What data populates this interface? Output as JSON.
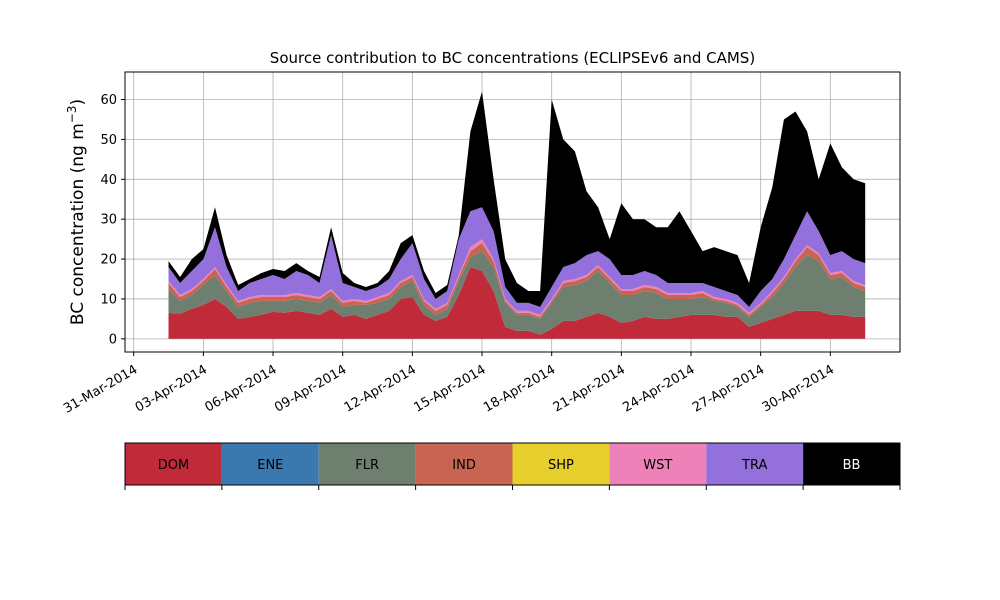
{
  "chart_data": {
    "type": "area",
    "stacked": true,
    "title": "Source contribution to BC concentrations (ECLIPSEv6 and CAMS)",
    "ylabel_main": "BC concentration (ng m",
    "ylabel_sup": "−3",
    "ylabel_close": ")",
    "xlabel": "",
    "ylim": [
      -3.3,
      66.9
    ],
    "xlim": [
      "2014-03-30T15:00",
      "2014-05-03T00:00"
    ],
    "grid": true,
    "y_ticks": [
      0,
      10,
      20,
      30,
      40,
      50,
      60
    ],
    "x_tick_dates": [
      "2014-03-31",
      "2014-04-03",
      "2014-04-06",
      "2014-04-09",
      "2014-04-12",
      "2014-04-15",
      "2014-04-18",
      "2014-04-21",
      "2014-04-24",
      "2014-04-27",
      "2014-04-30"
    ],
    "x_tick_labels": [
      "31-Mar-2014",
      "03-Apr-2014",
      "06-Apr-2014",
      "09-Apr-2014",
      "12-Apr-2014",
      "15-Apr-2014",
      "18-Apr-2014",
      "21-Apr-2014",
      "24-Apr-2014",
      "27-Apr-2014",
      "30-Apr-2014"
    ],
    "series_colors": {
      "DOM": "#c12b39",
      "ENE": "#3a78b0",
      "FLR": "#6e7f6f",
      "IND": "#c86452",
      "SHP": "#e6cf2d",
      "WST": "#ee82b8",
      "TRA": "#9370db",
      "BB": "#000000"
    },
    "legend": [
      {
        "name": "DOM",
        "color": "#c12b39",
        "text_color": "#000000"
      },
      {
        "name": "ENE",
        "color": "#3a78b0",
        "text_color": "#000000"
      },
      {
        "name": "FLR",
        "color": "#6e7f6f",
        "text_color": "#000000"
      },
      {
        "name": "IND",
        "color": "#c86452",
        "text_color": "#000000"
      },
      {
        "name": "SHP",
        "color": "#e6cf2d",
        "text_color": "#000000"
      },
      {
        "name": "WST",
        "color": "#ee82b8",
        "text_color": "#000000"
      },
      {
        "name": "TRA",
        "color": "#9370db",
        "text_color": "#000000"
      },
      {
        "name": "BB",
        "color": "#000000",
        "text_color": "#ffffff"
      }
    ],
    "legend_placement": "below",
    "cumulative_series_order": [
      "DOM",
      "FLR",
      "IND",
      "WST",
      "TRA",
      "BB"
    ],
    "x": [
      "2014-04-01T12:00",
      "2014-04-02T00:00",
      "2014-04-02T12:00",
      "2014-04-03T00:00",
      "2014-04-03T12:00",
      "2014-04-04T00:00",
      "2014-04-04T12:00",
      "2014-04-05T00:00",
      "2014-04-05T12:00",
      "2014-04-06T00:00",
      "2014-04-06T12:00",
      "2014-04-07T00:00",
      "2014-04-07T12:00",
      "2014-04-08T00:00",
      "2014-04-08T12:00",
      "2014-04-09T00:00",
      "2014-04-09T12:00",
      "2014-04-10T00:00",
      "2014-04-10T12:00",
      "2014-04-11T00:00",
      "2014-04-11T12:00",
      "2014-04-12T00:00",
      "2014-04-12T12:00",
      "2014-04-13T00:00",
      "2014-04-13T12:00",
      "2014-04-14T00:00",
      "2014-04-14T12:00",
      "2014-04-15T00:00",
      "2014-04-15T12:00",
      "2014-04-16T00:00",
      "2014-04-16T12:00",
      "2014-04-17T00:00",
      "2014-04-17T12:00",
      "2014-04-18T00:00",
      "2014-04-18T12:00",
      "2014-04-19T00:00",
      "2014-04-19T12:00",
      "2014-04-20T00:00",
      "2014-04-20T12:00",
      "2014-04-21T00:00",
      "2014-04-21T12:00",
      "2014-04-22T00:00",
      "2014-04-22T12:00",
      "2014-04-23T00:00",
      "2014-04-23T12:00",
      "2014-04-24T00:00",
      "2014-04-24T12:00",
      "2014-04-25T00:00",
      "2014-04-25T12:00",
      "2014-04-26T00:00",
      "2014-04-26T12:00",
      "2014-04-27T00:00",
      "2014-04-27T12:00",
      "2014-04-28T00:00",
      "2014-04-28T12:00",
      "2014-04-29T00:00",
      "2014-04-29T12:00",
      "2014-04-30T00:00",
      "2014-04-30T12:00",
      "2014-05-01T00:00",
      "2014-05-01T12:00"
    ],
    "cumulative": {
      "DOM": [
        6.5,
        6.3,
        7.5,
        8.5,
        10.0,
        8.0,
        5.0,
        5.5,
        6.0,
        6.8,
        6.5,
        7.0,
        6.5,
        6.0,
        7.5,
        5.5,
        6.0,
        5.0,
        6.0,
        7.0,
        10.0,
        10.5,
        6.0,
        4.5,
        5.5,
        11.0,
        18.0,
        17.0,
        12.0,
        3.0,
        2.0,
        2.0,
        1.0,
        2.5,
        4.5,
        4.5,
        5.5,
        6.5,
        5.5,
        4.0,
        4.5,
        5.5,
        5.0,
        5.0,
        5.5,
        6.0,
        6.0,
        6.0,
        5.5,
        5.5,
        3.0,
        4.0,
        5.0,
        6.0,
        7.0,
        7.0,
        7.0,
        6.0,
        6.0,
        5.5,
        5.5
      ],
      "FLR": [
        12.5,
        9.5,
        11.0,
        13.5,
        16.0,
        12.0,
        8.0,
        9.0,
        9.5,
        9.5,
        9.5,
        10.0,
        9.5,
        9.0,
        11.0,
        8.0,
        8.5,
        8.5,
        9.0,
        10.0,
        13.0,
        14.5,
        8.5,
        6.0,
        7.5,
        14.5,
        20.5,
        22.0,
        18.0,
        9.0,
        6.0,
        6.0,
        5.0,
        9.0,
        13.0,
        13.5,
        14.5,
        17.0,
        14.0,
        11.0,
        11.0,
        12.0,
        11.5,
        10.0,
        10.0,
        10.0,
        10.5,
        9.5,
        9.0,
        8.0,
        5.5,
        8.0,
        10.5,
        14.0,
        18.0,
        21.0,
        19.5,
        15.0,
        15.5,
        13.0,
        12.0
      ],
      "IND": [
        14.0,
        10.5,
        12.0,
        14.5,
        17.5,
        13.0,
        9.0,
        10.0,
        10.5,
        10.5,
        10.5,
        11.0,
        10.5,
        10.0,
        12.0,
        9.0,
        9.5,
        9.0,
        10.0,
        11.0,
        14.0,
        15.5,
        9.5,
        7.0,
        8.5,
        15.5,
        22.0,
        24.0,
        19.5,
        9.5,
        6.5,
        6.5,
        5.5,
        9.5,
        14.0,
        14.5,
        15.5,
        18.0,
        15.0,
        12.0,
        12.0,
        13.0,
        12.5,
        11.0,
        11.0,
        11.0,
        11.5,
        10.0,
        9.5,
        8.5,
        6.0,
        8.5,
        11.5,
        15.0,
        19.5,
        23.0,
        21.0,
        16.0,
        16.5,
        14.0,
        13.0
      ],
      "WST": [
        14.5,
        11.0,
        12.5,
        15.0,
        18.0,
        13.5,
        9.5,
        10.5,
        11.0,
        11.0,
        11.0,
        11.5,
        11.0,
        10.5,
        12.5,
        9.5,
        10.0,
        9.5,
        10.5,
        11.5,
        14.5,
        16.0,
        10.0,
        7.5,
        9.0,
        16.0,
        23.0,
        25.0,
        20.0,
        10.0,
        7.0,
        7.0,
        6.0,
        10.0,
        14.5,
        15.0,
        16.0,
        18.5,
        15.5,
        12.5,
        12.5,
        13.5,
        13.0,
        11.5,
        11.5,
        11.5,
        12.0,
        10.5,
        10.0,
        9.0,
        6.5,
        9.0,
        12.0,
        15.5,
        20.0,
        23.5,
        21.5,
        16.5,
        17.0,
        14.5,
        13.5
      ],
      "TRA": [
        18.0,
        14.0,
        17.0,
        20.0,
        28.0,
        18.0,
        12.0,
        14.0,
        15.0,
        16.0,
        15.0,
        17.0,
        16.0,
        14.0,
        26.0,
        14.0,
        13.0,
        12.0,
        13.0,
        15.0,
        20.0,
        24.0,
        15.0,
        10.0,
        12.0,
        25.0,
        32.0,
        33.0,
        27.0,
        13.0,
        9.0,
        9.0,
        8.0,
        13.0,
        18.0,
        19.0,
        21.0,
        22.0,
        20.0,
        16.0,
        16.0,
        17.0,
        16.0,
        14.0,
        14.0,
        14.0,
        14.0,
        13.0,
        12.0,
        11.0,
        8.0,
        12.0,
        15.0,
        20.0,
        26.0,
        32.0,
        27.0,
        21.0,
        22.0,
        20.0,
        19.0
      ],
      "BB": [
        19.5,
        15.5,
        20.0,
        22.5,
        33.0,
        21.0,
        13.5,
        15.0,
        16.5,
        17.5,
        17.0,
        19.0,
        17.0,
        15.5,
        28.0,
        16.5,
        14.0,
        13.0,
        14.0,
        17.0,
        24.0,
        26.0,
        17.0,
        11.5,
        13.5,
        26.0,
        52.0,
        62.0,
        40.0,
        20.0,
        14.0,
        12.0,
        12.0,
        60.0,
        50.0,
        47.0,
        37.0,
        33.0,
        25.0,
        34.0,
        30.0,
        30.0,
        28.0,
        28.0,
        32.0,
        27.0,
        22.0,
        23.0,
        22.0,
        21.0,
        14.0,
        28.0,
        38.0,
        55.0,
        57.0,
        52.0,
        40.0,
        49.0,
        43.0,
        40.0,
        39.0
      ]
    }
  }
}
